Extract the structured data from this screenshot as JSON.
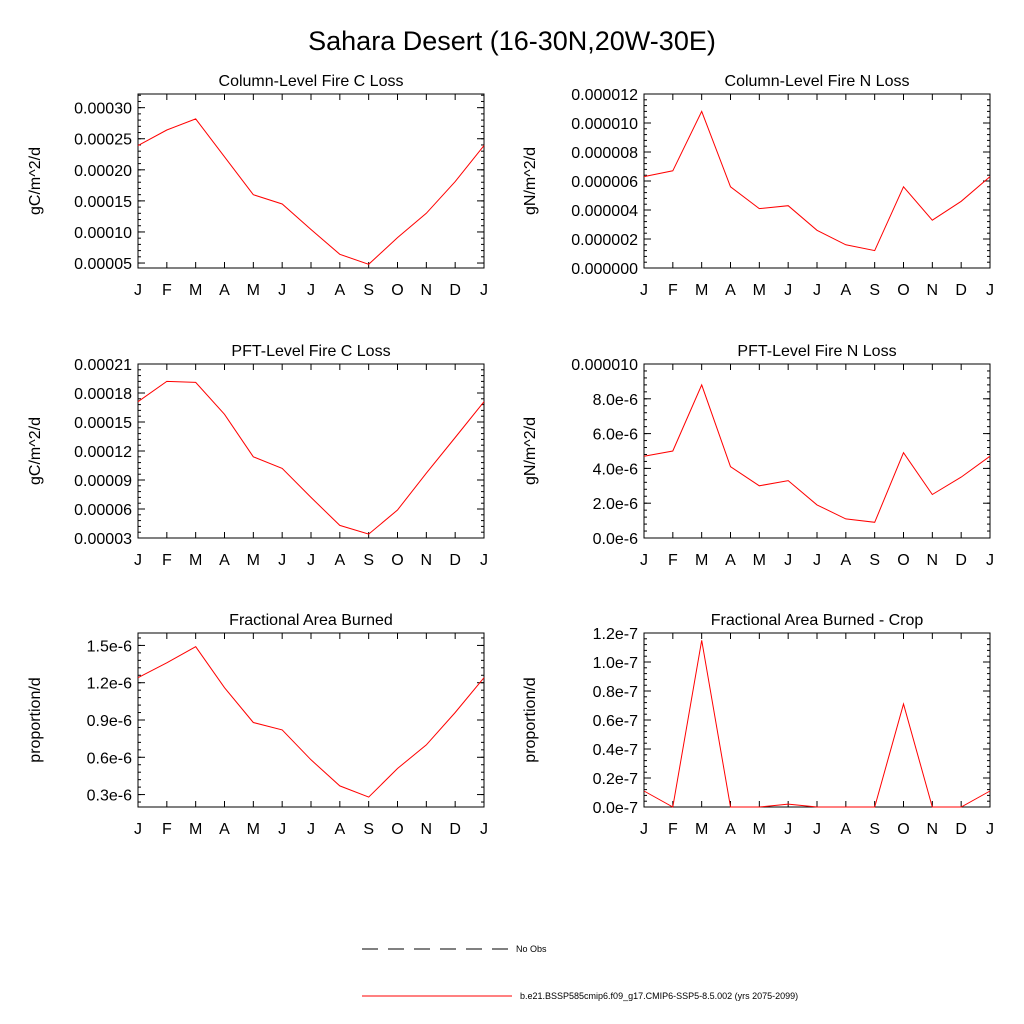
{
  "figure_title": "Sahara Desert (16-30N,20W-30E)",
  "legend": {
    "obs_label": "No Obs",
    "model_label": "b.e21.BSSP585cmip6.f09_g17.CMIP6-SSP5-8.5.002 (yrs 2075-2099)",
    "model_color": "#ff0000",
    "obs_color": "#000000"
  },
  "chart_data": [
    {
      "type": "line",
      "title": "Column-Level Fire C Loss",
      "ylabel": "gC/m^2/d",
      "x": [
        "J",
        "F",
        "M",
        "A",
        "M",
        "J",
        "J",
        "A",
        "S",
        "O",
        "N",
        "D",
        "J"
      ],
      "ylim": [
        4.2e-05,
        0.000322
      ],
      "yticks": [
        5e-05,
        0.0001,
        0.00015,
        0.0002,
        0.00025,
        0.0003
      ],
      "yticklabels": [
        "0.00005",
        "0.00010",
        "0.00015",
        "0.00020",
        "0.00025",
        "0.00030"
      ],
      "series": [
        {
          "color": "#ff0000",
          "values": [
            0.000239,
            0.000264,
            0.000282,
            0.000221,
            0.00016,
            0.000145,
            0.000104,
            6.4e-05,
            4.8e-05,
            9.1e-05,
            0.00013,
            0.000181,
            0.000239
          ]
        }
      ]
    },
    {
      "type": "line",
      "title": "Column-Level Fire N Loss",
      "ylabel": "gN/m^2/d",
      "x": [
        "J",
        "F",
        "M",
        "A",
        "M",
        "J",
        "J",
        "A",
        "S",
        "O",
        "N",
        "D",
        "J"
      ],
      "ylim": [
        0,
        1.2e-05
      ],
      "yticks": [
        0,
        2e-06,
        4e-06,
        6e-06,
        8e-06,
        1e-05,
        1.2e-05
      ],
      "yticklabels": [
        "0.000000",
        "0.000002",
        "0.000004",
        "0.000006",
        "0.000008",
        "0.000010",
        "0.000012"
      ],
      "series": [
        {
          "color": "#ff0000",
          "values": [
            6.3e-06,
            6.7e-06,
            1.08e-05,
            5.6e-06,
            4.1e-06,
            4.3e-06,
            2.6e-06,
            1.6e-06,
            1.2e-06,
            5.6e-06,
            3.3e-06,
            4.6e-06,
            6.3e-06
          ]
        }
      ]
    },
    {
      "type": "line",
      "title": "PFT-Level Fire C Loss",
      "ylabel": "gC/m^2/d",
      "x": [
        "J",
        "F",
        "M",
        "A",
        "M",
        "J",
        "J",
        "A",
        "S",
        "O",
        "N",
        "D",
        "J"
      ],
      "ylim": [
        3e-05,
        0.00021
      ],
      "yticks": [
        3e-05,
        6e-05,
        9e-05,
        0.00012,
        0.00015,
        0.00018,
        0.00021
      ],
      "yticklabels": [
        "0.00003",
        "0.00006",
        "0.00009",
        "0.00012",
        "0.00015",
        "0.00018",
        "0.00021"
      ],
      "series": [
        {
          "color": "#ff0000",
          "values": [
            0.000171,
            0.000192,
            0.000191,
            0.000158,
            0.000114,
            0.000102,
            7.2e-05,
            4.3e-05,
            3.4e-05,
            5.9e-05,
            9.7e-05,
            0.000134,
            0.000171
          ]
        }
      ]
    },
    {
      "type": "line",
      "title": "PFT-Level Fire N Loss",
      "ylabel": "gN/m^2/d",
      "x": [
        "J",
        "F",
        "M",
        "A",
        "M",
        "J",
        "J",
        "A",
        "S",
        "O",
        "N",
        "D",
        "J"
      ],
      "ylim": [
        0,
        1e-05
      ],
      "yticks": [
        0,
        2e-06,
        4e-06,
        6e-06,
        8e-06,
        1e-05
      ],
      "yticklabels": [
        "0.0e-6",
        "2.0e-6",
        "4.0e-6",
        "6.0e-6",
        "8.0e-6",
        "0.000010"
      ],
      "series": [
        {
          "color": "#ff0000",
          "values": [
            4.7e-06,
            5e-06,
            8.8e-06,
            4.1e-06,
            3e-06,
            3.3e-06,
            1.9e-06,
            1.1e-06,
            9e-07,
            4.9e-06,
            2.5e-06,
            3.5e-06,
            4.7e-06
          ]
        }
      ]
    },
    {
      "type": "line",
      "title": "Fractional Area Burned",
      "ylabel": "proportion/d",
      "x": [
        "J",
        "F",
        "M",
        "A",
        "M",
        "J",
        "J",
        "A",
        "S",
        "O",
        "N",
        "D",
        "J"
      ],
      "ylim": [
        2e-07,
        1.6e-06
      ],
      "yticks": [
        3e-07,
        6e-07,
        9e-07,
        1.2e-06,
        1.5e-06
      ],
      "yticklabels": [
        "0.3e-6",
        "0.6e-6",
        "0.9e-6",
        "1.2e-6",
        "1.5e-6"
      ],
      "series": [
        {
          "color": "#ff0000",
          "values": [
            1.24e-06,
            1.36e-06,
            1.49e-06,
            1.16e-06,
            8.8e-07,
            8.2e-07,
            5.8e-07,
            3.7e-07,
            2.8e-07,
            5.1e-07,
            7e-07,
            9.6e-07,
            1.24e-06
          ]
        }
      ]
    },
    {
      "type": "line",
      "title": "Fractional Area Burned - Crop",
      "ylabel": "proportion/d",
      "x": [
        "J",
        "F",
        "M",
        "A",
        "M",
        "J",
        "J",
        "A",
        "S",
        "O",
        "N",
        "D",
        "J"
      ],
      "ylim": [
        0,
        1.2e-07
      ],
      "yticks": [
        0,
        2e-08,
        4e-08,
        6e-08,
        8e-08,
        1e-07,
        1.2e-07
      ],
      "yticklabels": [
        "0.0e-7",
        "0.2e-7",
        "0.4e-7",
        "0.6e-7",
        "0.8e-7",
        "1.0e-7",
        "1.2e-7"
      ],
      "series": [
        {
          "color": "#ff0000",
          "values": [
            1.1e-08,
            0,
            1.15e-07,
            0,
            0,
            2e-09,
            0,
            0,
            0,
            7.1e-08,
            0,
            0,
            1.1e-08
          ]
        }
      ]
    }
  ]
}
